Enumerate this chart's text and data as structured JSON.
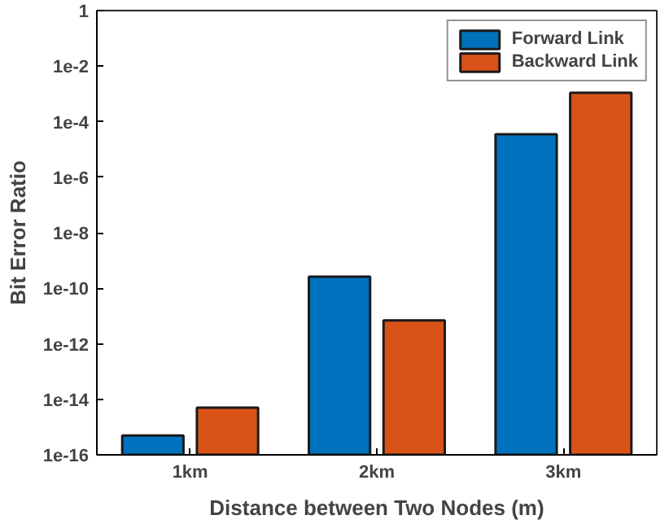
{
  "chart_data": {
    "type": "bar",
    "xlabel": "Distance between Two Nodes (m)",
    "ylabel": "Bit Error Ratio",
    "categories": [
      "1km",
      "2km",
      "3km"
    ],
    "series": [
      {
        "name": "Forward Link",
        "color": "#0072bd",
        "values": [
          5e-16,
          2.6e-10,
          3.5e-05
        ]
      },
      {
        "name": "Backward Link",
        "color": "#d95319",
        "values": [
          5e-15,
          7e-12,
          0.0011
        ]
      }
    ],
    "log": "y",
    "ylim": [
      1e-16,
      1
    ],
    "yticks": [
      {
        "value": 1e-16,
        "label": "1e-16"
      },
      {
        "value": 1e-14,
        "label": "1e-14"
      },
      {
        "value": 1e-12,
        "label": "1e-12"
      },
      {
        "value": 1e-10,
        "label": "1e-10"
      },
      {
        "value": 1e-08,
        "label": "1e-8"
      },
      {
        "value": 1e-06,
        "label": "1e-6"
      },
      {
        "value": 0.0001,
        "label": "1e-4"
      },
      {
        "value": 0.01,
        "label": "1e-2"
      },
      1
    ],
    "grid": false,
    "legend": "top right"
  }
}
